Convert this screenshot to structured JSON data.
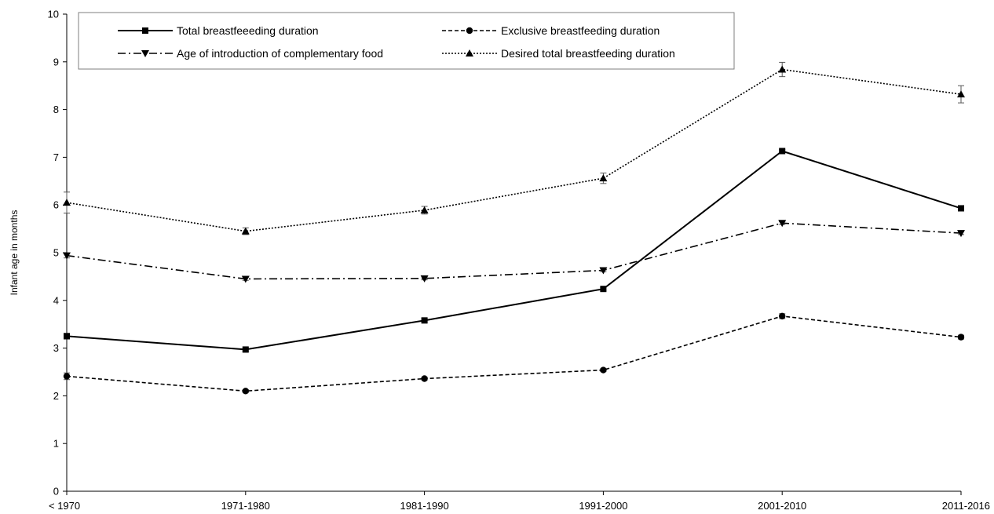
{
  "chart_data": {
    "type": "line",
    "title": "",
    "xlabel": "",
    "ylabel": "Infant age in months",
    "ylim": [
      0,
      10
    ],
    "yticks": [
      "0",
      "1",
      "2",
      "3",
      "4",
      "5",
      "6",
      "7",
      "8",
      "9",
      "10"
    ],
    "categories": [
      "< 1970",
      "1971-1980",
      "1981-1990",
      "1991-2000",
      "2001-2010",
      "2011-2016"
    ],
    "grid": false,
    "legend_position": "top",
    "error_bars": true,
    "series": [
      {
        "name": "Total breastfeeeding duration",
        "marker": "square",
        "line_style": "solid",
        "color": "#000000",
        "values": [
          3.25,
          2.97,
          3.58,
          4.24,
          7.13,
          5.93
        ],
        "errors": [
          0.06,
          0.03,
          0.03,
          0.03,
          0.03,
          0.04
        ]
      },
      {
        "name": "Exclusive breastfeeding duration",
        "marker": "circle",
        "line_style": "dashed",
        "color": "#000000",
        "values": [
          2.41,
          2.1,
          2.36,
          2.54,
          3.67,
          3.23
        ],
        "errors": [
          0.07,
          0.03,
          0.03,
          0.03,
          0.05,
          0.04
        ]
      },
      {
        "name": "Age of introduction of complementary food",
        "marker": "triangle-down",
        "line_style": "dash-dot",
        "color": "#000000",
        "values": [
          4.94,
          4.45,
          4.46,
          4.63,
          5.62,
          5.41
        ],
        "errors": [
          0.05,
          0.03,
          0.03,
          0.03,
          0.03,
          0.03
        ]
      },
      {
        "name": "Desired total breastfeeding duration",
        "marker": "triangle-up",
        "line_style": "dotted",
        "color": "#000000",
        "values": [
          6.05,
          5.45,
          5.89,
          6.56,
          8.84,
          8.32
        ],
        "errors": [
          0.22,
          0.07,
          0.08,
          0.11,
          0.15,
          0.18
        ]
      }
    ]
  }
}
